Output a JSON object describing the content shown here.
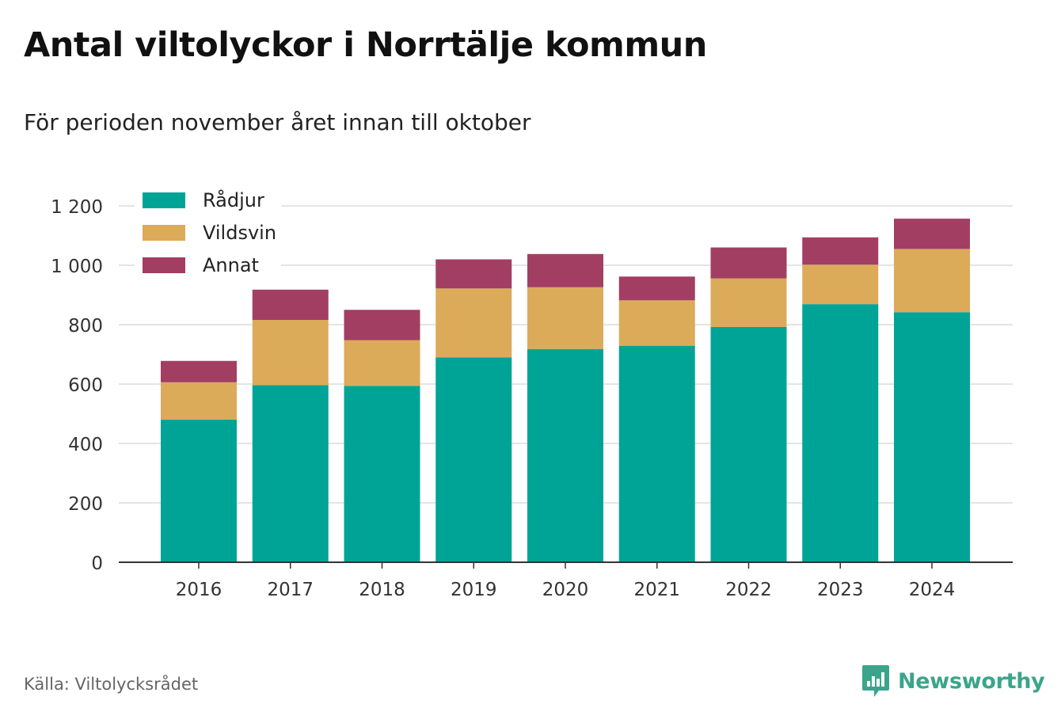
{
  "header": {
    "title": "Antal viltolyckor i Norrtälje kommun",
    "subtitle": "För perioden november året innan till oktober"
  },
  "footer": {
    "source": "Källa: Viltolycksrådet",
    "brand": "Newsworthy",
    "brand_icon": "bar-chart-speech-bubble-icon"
  },
  "chart_data": {
    "type": "bar",
    "stacked": true,
    "categories": [
      "2016",
      "2017",
      "2018",
      "2019",
      "2020",
      "2021",
      "2022",
      "2023",
      "2024"
    ],
    "series": [
      {
        "name": "Rådjur",
        "color": "#00a497",
        "values": [
          480,
          596,
          594,
          690,
          718,
          729,
          792,
          869,
          842
        ]
      },
      {
        "name": "Vildsvin",
        "color": "#dbab5a",
        "values": [
          126,
          220,
          154,
          232,
          208,
          153,
          164,
          133,
          213
        ]
      },
      {
        "name": "Annat",
        "color": "#a33e63",
        "values": [
          72,
          102,
          102,
          98,
          112,
          80,
          104,
          92,
          102
        ]
      }
    ],
    "ylim": [
      0,
      1200
    ],
    "yticks": [
      0,
      200,
      400,
      600,
      800,
      1000,
      1200
    ],
    "ytick_labels": [
      "0",
      "200",
      "400",
      "600",
      "800",
      "1 000",
      "1 200"
    ],
    "xlabel": "",
    "ylabel": "",
    "grid": true,
    "legend": "top-left"
  }
}
